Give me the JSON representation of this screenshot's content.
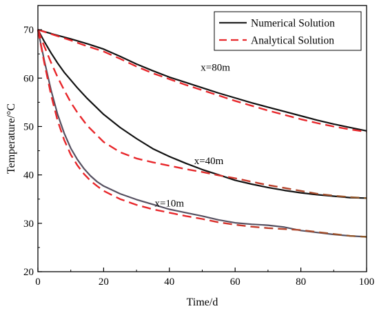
{
  "chart_data": {
    "type": "line",
    "xlabel": "Time/d",
    "ylabel": "Temperature/°C",
    "xlim": [
      0,
      100
    ],
    "ylim": [
      20,
      75
    ],
    "xticks": [
      0,
      20,
      40,
      60,
      80,
      100
    ],
    "yticks": [
      20,
      30,
      40,
      50,
      60,
      70
    ],
    "grid": false,
    "legend_position": "top-right",
    "legend": [
      {
        "label": "Numerical Solution",
        "style": "solid",
        "color": "#222222"
      },
      {
        "label": "Analytical Solution",
        "style": "dashed",
        "color": "#e8262a"
      }
    ],
    "annotations": [
      {
        "text": "x=80m",
        "x": 54,
        "y": 61.5
      },
      {
        "text": "x=40m",
        "x": 52,
        "y": 42.2
      },
      {
        "text": "x=10m",
        "x": 40,
        "y": 33.5
      }
    ],
    "series": [
      {
        "name": "Numerical Solution",
        "group": "x=80m",
        "style": "solid",
        "color": "#111111",
        "x": [
          0,
          5,
          10,
          15,
          20,
          25,
          30,
          35,
          40,
          45,
          50,
          55,
          60,
          65,
          70,
          75,
          80,
          85,
          90,
          95,
          100
        ],
        "y": [
          70,
          69,
          68.1,
          67.1,
          66,
          64.5,
          62.9,
          61.5,
          60.2,
          59.1,
          58,
          56.9,
          55.9,
          54.9,
          54,
          53.1,
          52.2,
          51.3,
          50.5,
          49.8,
          49.1
        ]
      },
      {
        "name": "Analytical Solution",
        "group": "x=80m",
        "style": "dashed",
        "color": "#e8262a",
        "x": [
          0,
          5,
          10,
          15,
          20,
          25,
          30,
          35,
          40,
          45,
          50,
          55,
          60,
          65,
          70,
          75,
          80,
          85,
          90,
          95,
          100
        ],
        "y": [
          70,
          68.9,
          67.8,
          66.6,
          65.5,
          64,
          62.4,
          61,
          59.8,
          58.6,
          57.5,
          56.4,
          55.3,
          54.3,
          53.3,
          52.4,
          51.5,
          50.7,
          50,
          49.4,
          48.9
        ]
      },
      {
        "name": "Numerical Solution",
        "group": "x=40m",
        "style": "solid",
        "color": "#111111",
        "x": [
          0,
          2,
          4,
          6,
          8,
          10,
          12,
          15,
          20,
          25,
          30,
          35,
          40,
          45,
          50,
          55,
          60,
          65,
          70,
          75,
          80,
          85,
          90,
          95,
          100
        ],
        "y": [
          70,
          67.5,
          65.2,
          63.1,
          61.2,
          59.6,
          58,
          55.8,
          52.5,
          49.8,
          47.5,
          45.4,
          43.8,
          42.4,
          41.1,
          40,
          38.9,
          38.1,
          37.4,
          36.8,
          36.3,
          35.9,
          35.6,
          35.3,
          35.2
        ]
      },
      {
        "name": "Analytical Solution",
        "group": "x=40m",
        "style": "dashed",
        "color": "#e8262a",
        "fade_to": "#8b5a2b",
        "x": [
          0,
          2,
          4,
          6,
          8,
          10,
          12,
          15,
          20,
          25,
          30,
          35,
          40,
          45,
          50,
          55,
          60,
          65,
          70,
          75,
          80,
          85,
          90,
          95,
          100
        ],
        "y": [
          70,
          66.5,
          63.2,
          60.2,
          57.5,
          55,
          52.9,
          50.2,
          46.8,
          44.7,
          43.4,
          42.6,
          41.9,
          41.2,
          40.6,
          39.9,
          39.3,
          38.6,
          37.9,
          37.3,
          36.7,
          36.1,
          35.7,
          35.4,
          35.2
        ]
      },
      {
        "name": "Numerical Solution",
        "group": "x=10m",
        "style": "solid",
        "color": "#555060",
        "x": [
          0,
          2,
          4,
          6,
          8,
          10,
          12,
          14,
          16,
          18,
          20,
          25,
          30,
          35,
          40,
          45,
          50,
          55,
          60,
          65,
          70,
          75,
          80,
          85,
          90,
          95,
          100
        ],
        "y": [
          70,
          63.5,
          57.5,
          52.5,
          48.6,
          45.5,
          43.2,
          41.3,
          39.8,
          38.6,
          37.7,
          36.1,
          34.9,
          33.9,
          32.9,
          32.2,
          31.5,
          30.7,
          30.1,
          29.8,
          29.6,
          29.2,
          28.5,
          28.1,
          27.7,
          27.4,
          27.2
        ]
      },
      {
        "name": "Analytical Solution",
        "group": "x=10m",
        "style": "dashed",
        "color": "#e8262a",
        "fade_to": "#8b5a2b",
        "x": [
          0,
          2,
          4,
          6,
          8,
          10,
          12,
          14,
          16,
          18,
          20,
          25,
          30,
          35,
          40,
          45,
          50,
          55,
          60,
          65,
          70,
          75,
          80,
          85,
          90,
          95,
          100
        ],
        "y": [
          70,
          63,
          56.5,
          51.2,
          47.2,
          44.2,
          42,
          40.2,
          38.8,
          37.7,
          36.7,
          35,
          33.8,
          32.9,
          32.2,
          31.5,
          30.9,
          30.2,
          29.7,
          29.3,
          29,
          28.8,
          28.6,
          28.2,
          27.8,
          27.4,
          27.2
        ]
      }
    ]
  }
}
